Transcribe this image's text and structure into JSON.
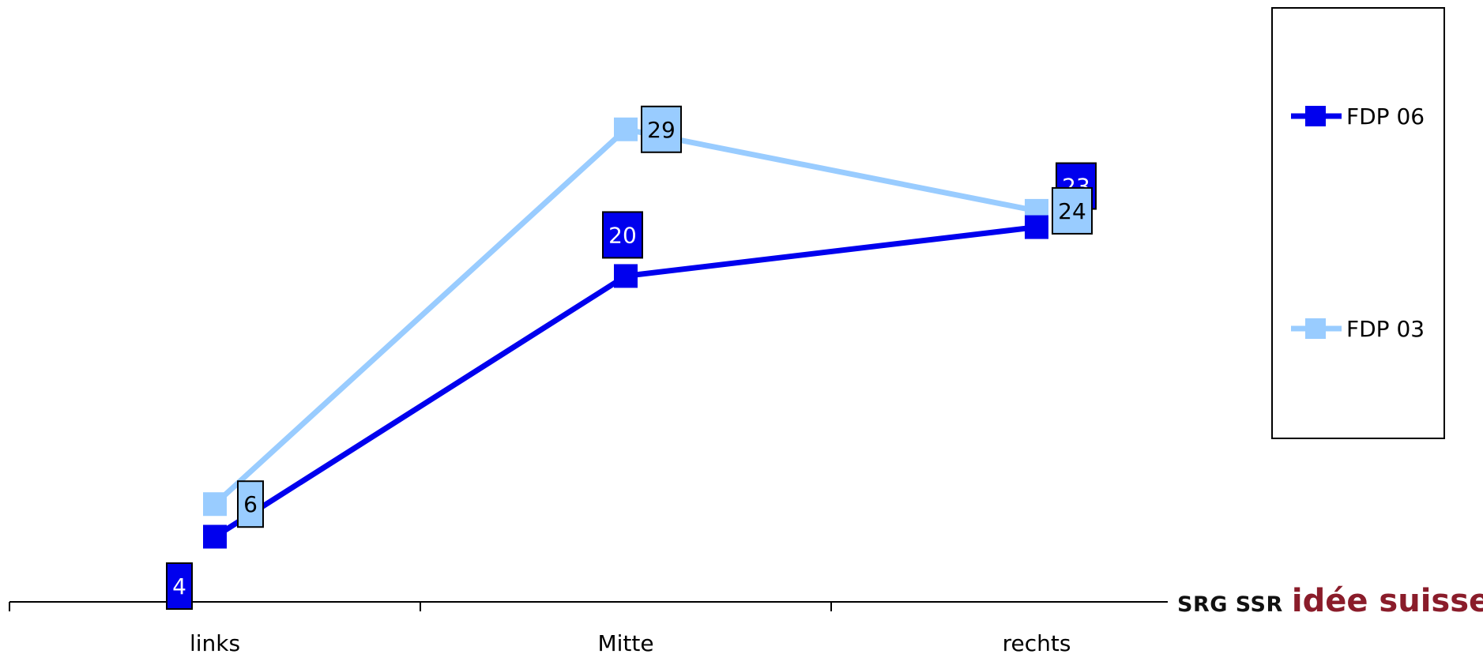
{
  "chart_data": {
    "type": "line",
    "categories": [
      "links",
      "Mitte",
      "rechts"
    ],
    "series": [
      {
        "name": "FDP 06",
        "values": [
          4,
          20,
          23
        ],
        "color": "#0000ee"
      },
      {
        "name": "FDP 03",
        "values": [
          6,
          29,
          24
        ],
        "color": "#99ccff"
      }
    ],
    "ylim": [
      0,
      35
    ],
    "grid": false,
    "legend": "right"
  },
  "logo": {
    "text_srg": "SRG SSR",
    "text_idee": "idée suisse"
  }
}
